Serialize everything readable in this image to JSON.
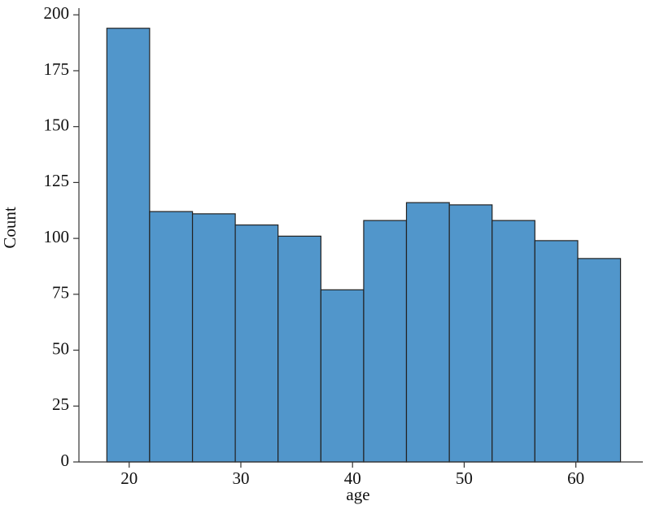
{
  "chart_data": {
    "type": "histogram",
    "x_label": "age",
    "y_label": "Count",
    "bins": [
      18,
      21.83,
      25.67,
      29.5,
      33.33,
      37.17,
      41,
      44.83,
      48.67,
      52.5,
      56.33,
      60.17,
      64
    ],
    "values": [
      194,
      112,
      111,
      106,
      101,
      77,
      108,
      116,
      115,
      108,
      99,
      91
    ],
    "color": "#5196cb",
    "xlim": [
      15.5,
      66
    ],
    "xticks": [
      20,
      30,
      40,
      50,
      60
    ],
    "ylim": [
      0,
      203
    ],
    "yticks": [
      0,
      25,
      50,
      75,
      100,
      125,
      150,
      175,
      200
    ]
  }
}
